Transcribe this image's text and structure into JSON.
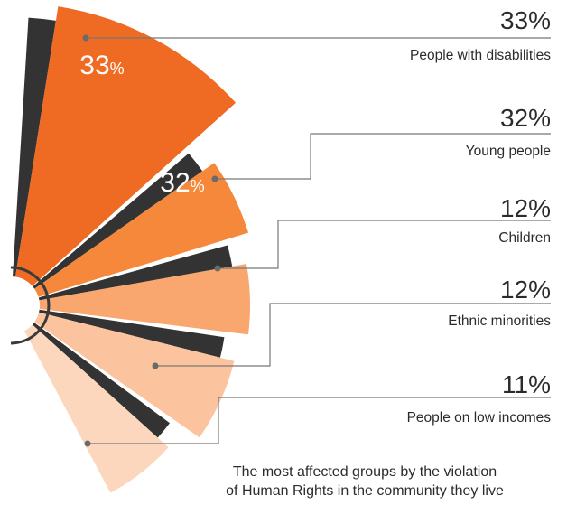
{
  "caption": {
    "line1": "The most affected groups by the violation",
    "line2": "of Human Rights in the community they live"
  },
  "chart_data": {
    "type": "pie",
    "categories": [
      "People with disabilities",
      "Young people",
      "Children",
      "Ethnic minorities",
      "People on low incomes"
    ],
    "values": [
      33,
      32,
      12,
      12,
      11
    ],
    "value_labels": [
      "33%",
      "32%",
      "12%",
      "12%",
      "11%"
    ],
    "inside_labels": [
      {
        "number": "33",
        "unit": "%"
      },
      {
        "number": "32",
        "unit": "%"
      }
    ],
    "colors": [
      "#ef6a22",
      "#f5883a",
      "#f9a66f",
      "#fcc49e",
      "#fdd7bd"
    ],
    "shadow_color": "#333333",
    "connector_color": "#777777",
    "legend_position": "right"
  }
}
